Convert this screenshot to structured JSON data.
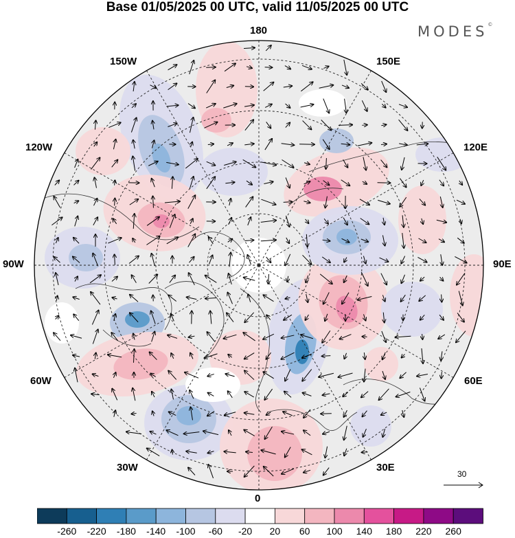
{
  "title": "Base 01/05/2025 00 UTC, valid 11/05/2025 00 UTC",
  "brand": {
    "name": "MODES",
    "mark": "©"
  },
  "longitude_labels": [
    "180",
    "150E",
    "120E",
    "90E",
    "60E",
    "30E",
    "0",
    "30W",
    "60W",
    "90W",
    "120W",
    "150W"
  ],
  "reference_vector": {
    "label": "30"
  },
  "colorbar": {
    "ticks": [
      "-260",
      "-220",
      "-180",
      "-140",
      "-100",
      "-60",
      "-20",
      "20",
      "60",
      "100",
      "140",
      "180",
      "220",
      "260"
    ],
    "colors": [
      "#0d3b5a",
      "#175f8f",
      "#2f7fb5",
      "#5a9bc9",
      "#8db5dc",
      "#b6c6e2",
      "#dcdcef",
      "#ffffff",
      "#f8d8d9",
      "#f3b6c0",
      "#ec89ac",
      "#e4519d",
      "#c71a86",
      "#8e0a86",
      "#5c0d7c"
    ]
  }
}
